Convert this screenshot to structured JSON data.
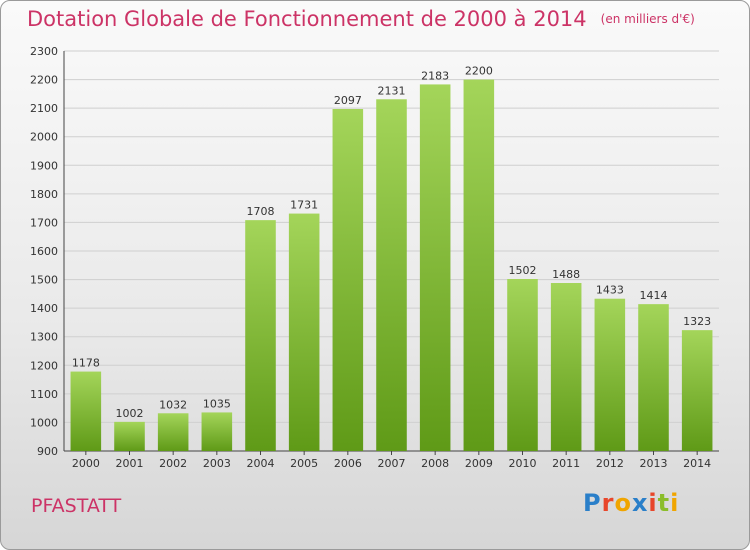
{
  "title": "Dotation Globale de Fonctionnement de 2000 à 2014",
  "unit": "(en milliers d'€)",
  "commune": "PFASTATT",
  "logo": {
    "letters": [
      "P",
      "r",
      "o",
      "x",
      "i",
      "t",
      "i"
    ],
    "colors": [
      "#2a7fc9",
      "#e8462a",
      "#f0a500",
      "#2a7fc9",
      "#e8462a",
      "#8bbd2a",
      "#f0a500"
    ]
  },
  "colors": {
    "bar_light": "#a4d55a",
    "bar_dark": "#5f9a17",
    "title": "#cc3366",
    "grid": "#cfcfcf"
  },
  "chart_data": {
    "type": "bar",
    "title": "Dotation Globale de Fonctionnement de 2000 à 2014",
    "categories": [
      "2000",
      "2001",
      "2002",
      "2003",
      "2004",
      "2005",
      "2006",
      "2007",
      "2008",
      "2009",
      "2010",
      "2011",
      "2012",
      "2013",
      "2014"
    ],
    "values": [
      1178,
      1002,
      1032,
      1035,
      1708,
      1731,
      2097,
      2131,
      2183,
      2200,
      1502,
      1488,
      1433,
      1414,
      1323
    ],
    "ylim": [
      900,
      2300
    ],
    "yticks": [
      900,
      1000,
      1100,
      1200,
      1300,
      1400,
      1500,
      1600,
      1700,
      1800,
      1900,
      2000,
      2100,
      2200,
      2300
    ],
    "grid": true,
    "data_labels": true
  }
}
